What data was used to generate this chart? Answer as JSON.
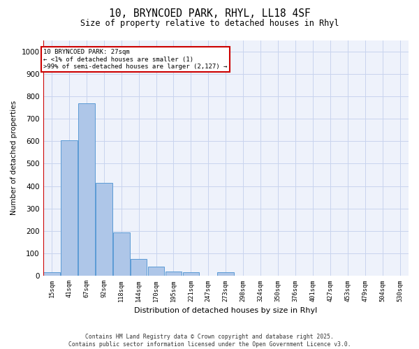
{
  "title_line1": "10, BRYNCOED PARK, RHYL, LL18 4SF",
  "title_line2": "Size of property relative to detached houses in Rhyl",
  "xlabel": "Distribution of detached houses by size in Rhyl",
  "ylabel": "Number of detached properties",
  "categories": [
    "15sqm",
    "41sqm",
    "67sqm",
    "92sqm",
    "118sqm",
    "144sqm",
    "170sqm",
    "195sqm",
    "221sqm",
    "247sqm",
    "273sqm",
    "298sqm",
    "324sqm",
    "350sqm",
    "376sqm",
    "401sqm",
    "427sqm",
    "453sqm",
    "479sqm",
    "504sqm",
    "530sqm"
  ],
  "values": [
    15,
    605,
    770,
    415,
    195,
    77,
    40,
    20,
    15,
    0,
    15,
    0,
    0,
    0,
    0,
    0,
    0,
    0,
    0,
    0,
    0
  ],
  "bar_color": "#aec6e8",
  "bar_edge_color": "#5b9bd5",
  "annotation_line1": "10 BRYNCOED PARK: 27sqm",
  "annotation_line2": "← <1% of detached houses are smaller (1)",
  "annotation_line3": ">99% of semi-detached houses are larger (2,127) →",
  "ylim": [
    0,
    1050
  ],
  "yticks": [
    0,
    100,
    200,
    300,
    400,
    500,
    600,
    700,
    800,
    900,
    1000
  ],
  "footer_text": "Contains HM Land Registry data © Crown copyright and database right 2025.\nContains public sector information licensed under the Open Government Licence v3.0.",
  "background_color": "#eef2fb",
  "grid_color": "#c8d4ee",
  "bar_color_highlight": "#aec6e8",
  "red_color": "#cc0000"
}
